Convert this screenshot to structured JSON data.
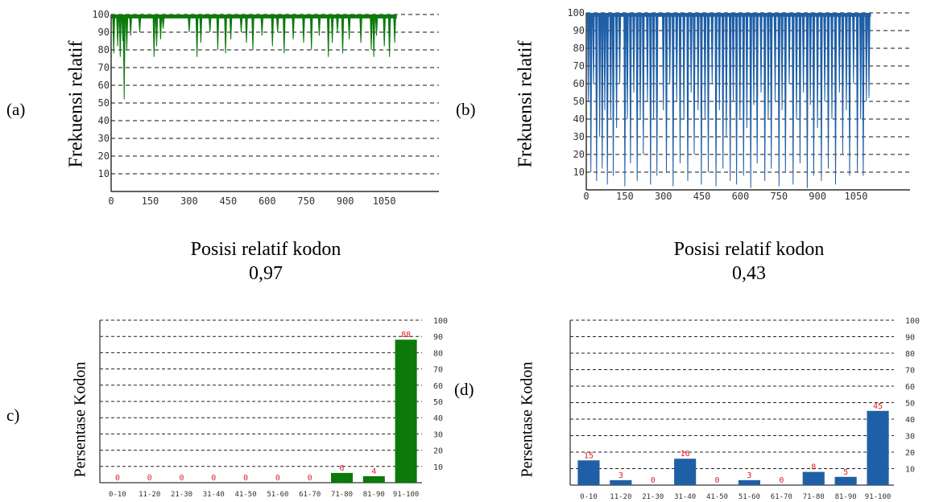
{
  "panels": {
    "a": {
      "letter": "(a)",
      "ylabel": "Frekuensi relatif",
      "xlabel": "Posisi relatif kodon",
      "score": "0,97"
    },
    "b": {
      "letter": "(b)",
      "ylabel": "Frekuensi relatif",
      "xlabel": "Posisi relatif kodon",
      "score": "0,43"
    },
    "c": {
      "letter": "c)",
      "ylabel": "Persentase Kodon"
    },
    "d": {
      "letter": "(d)",
      "ylabel": "Persentase Kodon"
    }
  },
  "colors": {
    "green": "#0b7a0b",
    "blue": "#1f5fa6",
    "label_red": "#e02020"
  },
  "chart_data": [
    {
      "id": "a",
      "type": "line",
      "color": "#0b7a0b",
      "x_ticks": [
        "0",
        "150",
        "300",
        "450",
        "600",
        "750",
        "900",
        "1050"
      ],
      "y_ticks": [
        "10",
        "20",
        "30",
        "40",
        "50",
        "60",
        "70",
        "80",
        "90",
        "100"
      ],
      "xlim": [
        0,
        1260
      ],
      "ylim": [
        0,
        100
      ],
      "grid": "dashed horizontal",
      "dips": [
        [
          10,
          78
        ],
        [
          25,
          82
        ],
        [
          35,
          76
        ],
        [
          45,
          85
        ],
        [
          50,
          52
        ],
        [
          60,
          80
        ],
        [
          75,
          88
        ],
        [
          110,
          90
        ],
        [
          165,
          76
        ],
        [
          175,
          82
        ],
        [
          190,
          86
        ],
        [
          200,
          92
        ],
        [
          300,
          90
        ],
        [
          330,
          76
        ],
        [
          345,
          84
        ],
        [
          380,
          90
        ],
        [
          410,
          80
        ],
        [
          440,
          78
        ],
        [
          460,
          86
        ],
        [
          500,
          90
        ],
        [
          520,
          84
        ],
        [
          545,
          80
        ],
        [
          580,
          88
        ],
        [
          620,
          82
        ],
        [
          640,
          90
        ],
        [
          665,
          78
        ],
        [
          700,
          86
        ],
        [
          740,
          84
        ],
        [
          770,
          80
        ],
        [
          800,
          88
        ],
        [
          835,
          76
        ],
        [
          850,
          84
        ],
        [
          870,
          90
        ],
        [
          890,
          78
        ],
        [
          915,
          86
        ],
        [
          960,
          84
        ],
        [
          1000,
          80
        ],
        [
          1010,
          76
        ],
        [
          1020,
          88
        ],
        [
          1050,
          82
        ],
        [
          1070,
          76
        ],
        [
          1090,
          84
        ]
      ]
    },
    {
      "id": "b",
      "type": "line",
      "color": "#1f5fa6",
      "x_ticks": [
        "0",
        "150",
        "300",
        "450",
        "600",
        "750",
        "900",
        "1050"
      ],
      "y_ticks": [
        "10",
        "20",
        "30",
        "40",
        "50",
        "60",
        "70",
        "80",
        "90",
        "100"
      ],
      "xlim": [
        0,
        1260
      ],
      "ylim": [
        0,
        100
      ],
      "grid": "dashed horizontal",
      "dips": [
        [
          8,
          50
        ],
        [
          18,
          10
        ],
        [
          28,
          60
        ],
        [
          40,
          5
        ],
        [
          52,
          30
        ],
        [
          62,
          12
        ],
        [
          72,
          45
        ],
        [
          82,
          3
        ],
        [
          95,
          40
        ],
        [
          105,
          8
        ],
        [
          118,
          35
        ],
        [
          130,
          60
        ],
        [
          150,
          2
        ],
        [
          160,
          40
        ],
        [
          172,
          15
        ],
        [
          185,
          55
        ],
        [
          198,
          5
        ],
        [
          210,
          40
        ],
        [
          222,
          20
        ],
        [
          238,
          50
        ],
        [
          250,
          3
        ],
        [
          262,
          40
        ],
        [
          275,
          8
        ],
        [
          300,
          45
        ],
        [
          312,
          10
        ],
        [
          325,
          60
        ],
        [
          338,
          2
        ],
        [
          352,
          50
        ],
        [
          365,
          15
        ],
        [
          380,
          40
        ],
        [
          395,
          5
        ],
        [
          408,
          55
        ],
        [
          420,
          20
        ],
        [
          435,
          45
        ],
        [
          448,
          3
        ],
        [
          462,
          40
        ],
        [
          475,
          10
        ],
        [
          490,
          60
        ],
        [
          505,
          2
        ],
        [
          518,
          45
        ],
        [
          532,
          12
        ],
        [
          545,
          30
        ],
        [
          560,
          5
        ],
        [
          572,
          50
        ],
        [
          585,
          3
        ],
        [
          598,
          40
        ],
        [
          612,
          8
        ],
        [
          625,
          35
        ],
        [
          640,
          1
        ],
        [
          652,
          48
        ],
        [
          665,
          15
        ],
        [
          680,
          55
        ],
        [
          695,
          5
        ],
        [
          708,
          40
        ],
        [
          720,
          12
        ],
        [
          735,
          50
        ],
        [
          750,
          2
        ],
        [
          762,
          45
        ],
        [
          775,
          10
        ],
        [
          790,
          60
        ],
        [
          805,
          3
        ],
        [
          818,
          40
        ],
        [
          832,
          15
        ],
        [
          845,
          55
        ],
        [
          860,
          1
        ],
        [
          872,
          48
        ],
        [
          885,
          8
        ],
        [
          900,
          35
        ],
        [
          915,
          5
        ],
        [
          928,
          50
        ],
        [
          942,
          12
        ],
        [
          956,
          40
        ],
        [
          970,
          3
        ],
        [
          985,
          55
        ],
        [
          998,
          20
        ],
        [
          1012,
          45
        ],
        [
          1025,
          8
        ],
        [
          1040,
          60
        ],
        [
          1055,
          10
        ],
        [
          1068,
          40
        ],
        [
          1078,
          8
        ],
        [
          1090,
          50
        ],
        [
          1100,
          52
        ]
      ]
    },
    {
      "id": "c",
      "type": "bar",
      "color": "#0b7a0b",
      "categories": [
        "0-10",
        "11-20",
        "21-30",
        "31-40",
        "41-50",
        "51-60",
        "61-70",
        "71-80",
        "81-90",
        "91-100"
      ],
      "values": [
        0,
        0,
        0,
        0,
        0,
        0,
        0,
        6,
        4,
        88
      ],
      "ylim": [
        0,
        100
      ],
      "y_ticks": [
        "10",
        "20",
        "30",
        "40",
        "50",
        "60",
        "70",
        "80",
        "90",
        "100"
      ],
      "grid": "dashed horizontal",
      "y_axis_side": "right"
    },
    {
      "id": "d",
      "type": "bar",
      "color": "#1f5fa6",
      "categories": [
        "0-10",
        "11-20",
        "21-30",
        "31-40",
        "41-50",
        "51-60",
        "61-70",
        "71-80",
        "81-90",
        "91-100"
      ],
      "values": [
        15,
        3,
        0,
        16,
        0,
        3,
        0,
        8,
        5,
        45
      ],
      "ylim": [
        0,
        100
      ],
      "y_ticks": [
        "10",
        "20",
        "30",
        "40",
        "50",
        "60",
        "70",
        "80",
        "90",
        "100"
      ],
      "grid": "dashed horizontal",
      "y_axis_side": "right"
    }
  ]
}
